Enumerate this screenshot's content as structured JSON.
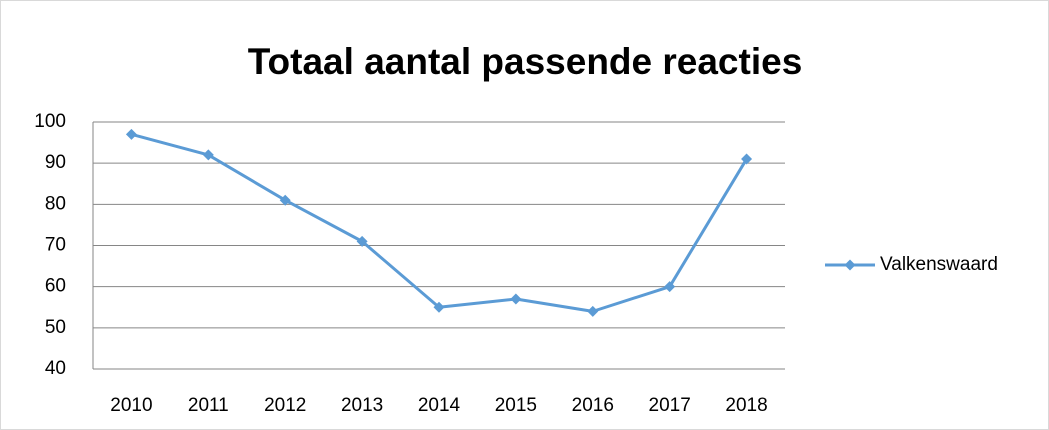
{
  "chart_data": {
    "type": "line",
    "title": "Totaal aantal passende reacties",
    "categories": [
      "2010",
      "2011",
      "2012",
      "2013",
      "2014",
      "2015",
      "2016",
      "2017",
      "2018"
    ],
    "series": [
      {
        "name": "Valkenswaard",
        "color": "#5b9bd5",
        "values": [
          97,
          92,
          81,
          71,
          55,
          57,
          54,
          60,
          91
        ]
      }
    ],
    "ylim": [
      40,
      100
    ],
    "yticks": [
      40,
      50,
      60,
      70,
      80,
      90,
      100
    ],
    "grid": true,
    "legend": "right"
  }
}
